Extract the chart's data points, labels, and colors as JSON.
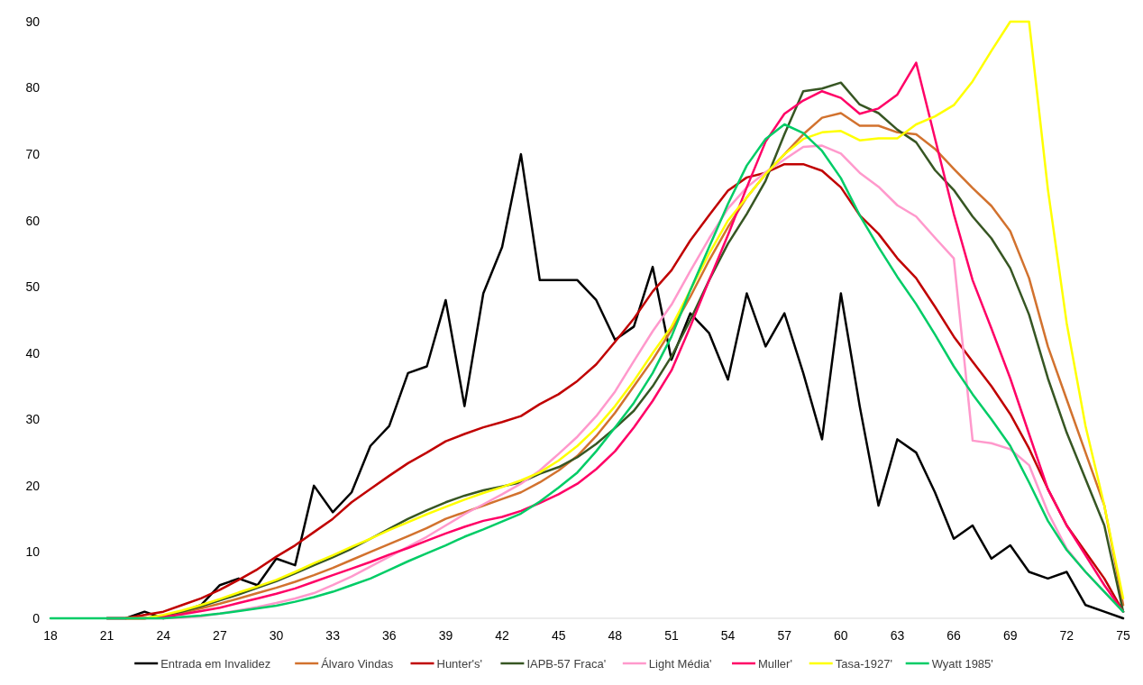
{
  "chart_data": {
    "type": "line",
    "x": [
      18,
      19,
      20,
      21,
      22,
      23,
      24,
      25,
      26,
      27,
      28,
      29,
      30,
      31,
      32,
      33,
      34,
      35,
      36,
      37,
      38,
      39,
      40,
      41,
      42,
      43,
      44,
      45,
      46,
      47,
      48,
      49,
      50,
      51,
      52,
      53,
      54,
      55,
      56,
      57,
      58,
      59,
      60,
      61,
      62,
      63,
      64,
      65,
      66,
      67,
      68,
      69,
      70,
      71,
      72,
      73,
      74,
      75
    ],
    "xlim": [
      18,
      75
    ],
    "xticks": [
      18,
      21,
      24,
      27,
      30,
      33,
      36,
      39,
      42,
      45,
      48,
      51,
      54,
      57,
      60,
      63,
      66,
      69,
      72,
      75
    ],
    "ylim": [
      0,
      90
    ],
    "yticks": [
      0,
      10,
      20,
      30,
      40,
      50,
      60,
      70,
      80,
      90
    ],
    "grid": false,
    "legend": "bottom",
    "marker": "none",
    "line_style": "solid",
    "series": [
      {
        "name": "Entrada em Invalidez",
        "color": "#000000",
        "values": [
          null,
          null,
          null,
          0,
          0,
          1,
          0,
          1,
          2,
          5,
          6,
          5,
          9,
          8,
          20,
          16,
          19,
          26,
          29,
          37,
          38,
          48,
          32,
          49,
          56,
          70,
          51,
          51,
          51,
          48,
          42,
          44,
          53,
          39,
          46,
          43,
          36,
          49,
          41,
          46,
          37,
          27,
          49,
          32,
          17,
          27,
          25,
          19,
          12,
          14,
          9,
          11,
          7,
          6,
          7,
          2,
          1,
          0
        ]
      },
      {
        "name": "Álvaro Vindas",
        "color": "#d2722e",
        "values": [
          null,
          null,
          null,
          null,
          0,
          0,
          0.3,
          0.8,
          1.5,
          2.2,
          3,
          3.8,
          4.6,
          5.5,
          6.5,
          7.6,
          8.8,
          10,
          11.2,
          12.4,
          13.6,
          15,
          16,
          17,
          18,
          19,
          20.5,
          22.3,
          24.5,
          27.5,
          31,
          35,
          39,
          43.5,
          48.5,
          54,
          59,
          63.5,
          67,
          70,
          73,
          75.5,
          76.2,
          74.3,
          74.3,
          73.3,
          73,
          70.8,
          67.8,
          64.9,
          62.2,
          58.4,
          51.3,
          41,
          33,
          25,
          17,
          2
        ]
      },
      {
        "name": "Hunter's'",
        "color": "#c00000",
        "values": [
          null,
          null,
          null,
          0,
          0,
          0.5,
          1,
          2,
          3,
          4.3,
          5.8,
          7.4,
          9.3,
          11,
          13,
          15,
          17.5,
          19.5,
          21.5,
          23.4,
          25,
          26.7,
          27.8,
          28.8,
          29.6,
          30.5,
          32.3,
          33.8,
          35.8,
          38.3,
          41.7,
          45.2,
          49.3,
          52.5,
          57,
          60.8,
          64.5,
          66.5,
          67.2,
          68.5,
          68.5,
          67.5,
          65,
          60.8,
          58,
          54.3,
          51.3,
          47,
          42.5,
          38.7,
          35,
          30.8,
          25.6,
          19.5,
          14,
          10,
          6,
          1
        ]
      },
      {
        "name": "IAPB-57 Fraca'",
        "color": "#375623",
        "values": [
          null,
          null,
          null,
          null,
          0,
          0,
          0.4,
          1,
          1.8,
          2.7,
          3.6,
          4.6,
          5.6,
          6.8,
          8,
          9.2,
          10.5,
          12,
          13.5,
          15,
          16.3,
          17.5,
          18.5,
          19.3,
          19.9,
          20.5,
          21.8,
          22.8,
          24.3,
          26.3,
          28.7,
          31.3,
          35,
          39.5,
          45,
          51,
          56.5,
          61,
          66,
          73,
          79.5,
          79.9,
          80.8,
          77.5,
          76.2,
          73.7,
          71.8,
          67.6,
          64.6,
          60.6,
          57.3,
          52.8,
          45.8,
          36.2,
          28,
          21,
          14,
          1
        ]
      },
      {
        "name": "Light Média'",
        "color": "#ff99cc",
        "values": [
          null,
          null,
          null,
          null,
          0,
          0,
          0,
          0.1,
          0.3,
          0.7,
          1.2,
          1.7,
          2.3,
          3,
          3.8,
          5,
          6.3,
          7.8,
          9.3,
          10.8,
          12.3,
          14,
          15.7,
          17.2,
          18.7,
          20.3,
          22.3,
          24.8,
          27.4,
          30.5,
          34.2,
          38.8,
          43.3,
          47.3,
          52.4,
          57.3,
          61.8,
          65,
          67.3,
          69.2,
          71.1,
          71.3,
          70.1,
          67.2,
          65.1,
          62.3,
          60.6,
          57.4,
          54.3,
          26.8,
          26.4,
          25.5,
          23.1,
          16,
          10.5,
          7,
          4,
          1
        ]
      },
      {
        "name": "Muller'",
        "color": "#ff0066",
        "values": [
          null,
          null,
          null,
          null,
          0,
          0,
          0.2,
          0.6,
          1.1,
          1.6,
          2.3,
          3,
          3.7,
          4.5,
          5.5,
          6.5,
          7.5,
          8.5,
          9.6,
          10.6,
          11.7,
          12.8,
          13.8,
          14.7,
          15.3,
          16.2,
          17.4,
          18.7,
          20.3,
          22.5,
          25.2,
          28.8,
          32.8,
          37.4,
          44,
          51,
          57.8,
          65,
          71.9,
          76.1,
          78.1,
          79.5,
          78.5,
          76.1,
          76.9,
          79,
          83.8,
          72.4,
          61,
          51,
          43.7,
          36.2,
          27.8,
          19.5,
          14,
          9.5,
          5,
          1
        ]
      },
      {
        "name": "Tasa-1927'",
        "color": "#ffff00",
        "values": [
          null,
          null,
          null,
          null,
          0,
          0,
          0.5,
          1.2,
          2,
          2.9,
          3.9,
          4.8,
          5.8,
          7,
          8.3,
          9.5,
          10.8,
          12,
          13.3,
          14.5,
          15.7,
          16.8,
          17.9,
          18.9,
          19.8,
          20.8,
          22,
          23.8,
          26,
          28.7,
          32,
          35.8,
          40,
          44,
          49.5,
          55,
          60,
          63.5,
          67,
          70,
          72.3,
          73.3,
          73.5,
          72.1,
          72.4,
          72.4,
          74.5,
          75.7,
          77.4,
          81,
          85.6,
          90,
          90,
          64.7,
          44.5,
          29,
          17,
          3
        ]
      },
      {
        "name": "Wyatt 1985'",
        "color": "#00cc66",
        "values": [
          0,
          0,
          0,
          0,
          0,
          0,
          0,
          0.2,
          0.4,
          0.7,
          1.1,
          1.5,
          1.9,
          2.5,
          3.2,
          4,
          5,
          6,
          7.3,
          8.6,
          9.8,
          11,
          12.3,
          13.4,
          14.6,
          15.8,
          17.6,
          19.7,
          22,
          25.2,
          28.8,
          32.5,
          37,
          42.5,
          49.5,
          56,
          62.5,
          68.3,
          72.3,
          74.5,
          73.2,
          70.5,
          66.4,
          60.8,
          56,
          51.5,
          47.4,
          42.8,
          38,
          33.8,
          30,
          26,
          20.5,
          14.7,
          10.3,
          7,
          4,
          1
        ]
      }
    ]
  }
}
